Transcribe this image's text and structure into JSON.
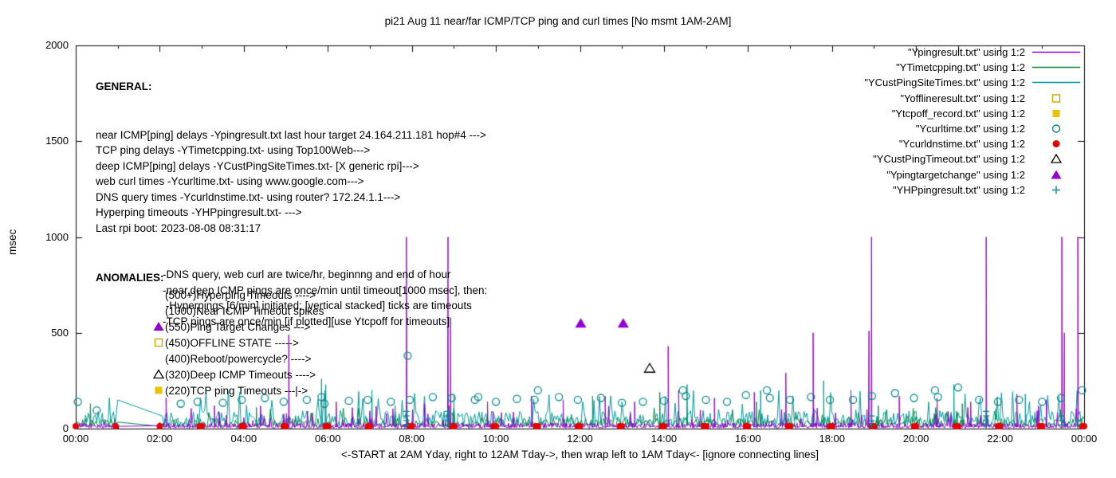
{
  "chart_data": {
    "type": "line",
    "title": "pi21 Aug 11  near/far ICMP/TCP ping and curl times [No msmt 1AM-2AM]",
    "xlabel": "<-START at 2AM Yday, right to 12AM Tday->, then wrap left to 1AM Tday<- [ignore connecting lines]",
    "ylabel": "msec",
    "ylim": [
      0,
      2000
    ],
    "x_range_hours": [
      0,
      24
    ],
    "gap_hours": [
      1,
      2
    ],
    "y_ticks": [
      0,
      500,
      1000,
      1500,
      2000
    ],
    "x_ticks": [
      "00:00",
      "02:00",
      "04:00",
      "06:00",
      "08:00",
      "10:00",
      "12:00",
      "14:00",
      "16:00",
      "18:00",
      "20:00",
      "22:00",
      "00:00"
    ],
    "grid": false,
    "legend_position": "top-right",
    "legend": [
      {
        "label": "\"Ypingresult.txt\" using 1:2",
        "type": "line",
        "color": "#9400D3"
      },
      {
        "label": "\"YTimetcpping.txt\" using 1:2",
        "type": "line",
        "color": "#008B45"
      },
      {
        "label": "\"YCustPingSiteTimes.txt\" using 1:2",
        "type": "line",
        "color": "#009999"
      },
      {
        "label": "\"Yofflineresult.txt\" using 1:2",
        "type": "square-open",
        "color": "#C9A900"
      },
      {
        "label": "\"Ytcpoff_record.txt\" using 1:2",
        "type": "square-filled",
        "color": "#E8C500"
      },
      {
        "label": "\"Ycurltime.txt\" using 1:2",
        "type": "circle-open",
        "color": "#008B8B"
      },
      {
        "label": "\"Ycurldnstime.txt\" using 1:2",
        "type": "circle-filled",
        "color": "#E60000"
      },
      {
        "label": "\"YCustPingTimeout.txt\" using 1:2",
        "type": "triangle-open",
        "color": "#000000"
      },
      {
        "label": "\"Ypingtargetchange\" using 1:2",
        "type": "triangle-filled",
        "color": "#9400D3"
      },
      {
        "label": "\"YHPpingresult.txt\" using 1:2",
        "type": "plus",
        "color": "#008B8B"
      }
    ],
    "series": [
      {
        "name": "Ypingresult.txt",
        "kind": "line",
        "color": "#9400D3",
        "baseline": {
          "min": 3,
          "max": 30,
          "spike_prob": 0.05,
          "spike_max": 120,
          "step": 0.016666
        },
        "spikes": [
          {
            "x": 2.15,
            "y": 160
          },
          {
            "x": 3.3,
            "y": 120
          },
          {
            "x": 5.07,
            "y": 490
          },
          {
            "x": 6.2,
            "y": 140
          },
          {
            "x": 7.87,
            "y": 1000
          },
          {
            "x": 8.3,
            "y": 130
          },
          {
            "x": 8.86,
            "y": 1000
          },
          {
            "x": 8.92,
            "y": 580
          },
          {
            "x": 9.8,
            "y": 140
          },
          {
            "x": 10.85,
            "y": 170
          },
          {
            "x": 11.6,
            "y": 150
          },
          {
            "x": 12.6,
            "y": 170
          },
          {
            "x": 13.3,
            "y": 140
          },
          {
            "x": 14.1,
            "y": 430
          },
          {
            "x": 14.35,
            "y": 200
          },
          {
            "x": 15.2,
            "y": 160
          },
          {
            "x": 16.15,
            "y": 190
          },
          {
            "x": 16.9,
            "y": 290
          },
          {
            "x": 17.55,
            "y": 500
          },
          {
            "x": 18.45,
            "y": 200
          },
          {
            "x": 18.88,
            "y": 510
          },
          {
            "x": 18.94,
            "y": 1000
          },
          {
            "x": 19.6,
            "y": 170
          },
          {
            "x": 20.5,
            "y": 160
          },
          {
            "x": 21.3,
            "y": 140
          },
          {
            "x": 21.67,
            "y": 1000
          },
          {
            "x": 22.4,
            "y": 180
          },
          {
            "x": 23.1,
            "y": 150
          },
          {
            "x": 23.47,
            "y": 1000
          },
          {
            "x": 23.53,
            "y": 500
          },
          {
            "x": 23.85,
            "y": 1000
          }
        ]
      },
      {
        "name": "YTimetcpping.txt",
        "kind": "line",
        "color": "#008B45",
        "baseline": {
          "min": 8,
          "max": 55,
          "spike_prob": 0.04,
          "spike_max": 110,
          "step": 0.033333
        },
        "spikes": [
          {
            "x": 0.35,
            "y": 130
          },
          {
            "x": 4.3,
            "y": 110
          },
          {
            "x": 7.6,
            "y": 120
          },
          {
            "x": 13.9,
            "y": 190
          },
          {
            "x": 16.2,
            "y": 140
          },
          {
            "x": 19.1,
            "y": 120
          },
          {
            "x": 21.1,
            "y": 130
          }
        ]
      },
      {
        "name": "YCustPingSiteTimes.txt",
        "kind": "line",
        "color": "#009999",
        "baseline": {
          "min": 12,
          "max": 95,
          "spike_prob": 0.07,
          "spike_max": 200,
          "step": 0.033333
        },
        "spikes": [
          {
            "x": 5.85,
            "y": 260
          },
          {
            "x": 5.95,
            "y": 230
          },
          {
            "x": 7.05,
            "y": 200
          },
          {
            "x": 9.0,
            "y": 180
          },
          {
            "x": 12.3,
            "y": 170
          },
          {
            "x": 14.55,
            "y": 230
          },
          {
            "x": 16.3,
            "y": 200
          },
          {
            "x": 17.8,
            "y": 250
          },
          {
            "x": 20.9,
            "y": 230
          },
          {
            "x": 22.6,
            "y": 180
          }
        ]
      },
      {
        "name": "Yofflineresult.txt",
        "kind": "points",
        "marker": "square-open",
        "color": "#C9A900",
        "points": []
      },
      {
        "name": "Ytcpoff_record.txt",
        "kind": "points",
        "marker": "square-filled",
        "color": "#E8C500",
        "points": []
      },
      {
        "name": "Ycurltime.txt",
        "kind": "points",
        "marker": "circle-open",
        "color": "#008B8B",
        "points": [
          [
            0.05,
            140
          ],
          [
            0.5,
            95
          ],
          [
            2.5,
            130
          ],
          [
            2.9,
            140
          ],
          [
            3.5,
            135
          ],
          [
            3.95,
            150
          ],
          [
            4.5,
            160
          ],
          [
            4.95,
            140
          ],
          [
            5.5,
            150
          ],
          [
            5.85,
            165
          ],
          [
            5.92,
            130
          ],
          [
            6.5,
            145
          ],
          [
            6.95,
            150
          ],
          [
            7.5,
            140
          ],
          [
            7.9,
            380
          ],
          [
            7.95,
            150
          ],
          [
            8.5,
            165
          ],
          [
            8.95,
            160
          ],
          [
            9.5,
            150
          ],
          [
            9.58,
            165
          ],
          [
            10.0,
            140
          ],
          [
            10.5,
            155
          ],
          [
            10.92,
            150
          ],
          [
            11.0,
            200
          ],
          [
            11.5,
            165
          ],
          [
            11.95,
            150
          ],
          [
            12.5,
            160
          ],
          [
            13.0,
            135
          ],
          [
            13.5,
            140
          ],
          [
            14.0,
            145
          ],
          [
            14.45,
            200
          ],
          [
            14.52,
            170
          ],
          [
            15.0,
            150
          ],
          [
            15.5,
            140
          ],
          [
            15.95,
            175
          ],
          [
            16.45,
            200
          ],
          [
            16.52,
            160
          ],
          [
            17.0,
            150
          ],
          [
            17.5,
            165
          ],
          [
            17.95,
            150
          ],
          [
            18.5,
            150
          ],
          [
            18.95,
            170
          ],
          [
            19.5,
            185
          ],
          [
            19.95,
            160
          ],
          [
            20.45,
            200
          ],
          [
            20.52,
            165
          ],
          [
            21.0,
            215
          ],
          [
            21.5,
            150
          ],
          [
            21.95,
            140
          ],
          [
            22.45,
            150
          ],
          [
            23.0,
            140
          ],
          [
            23.45,
            160
          ],
          [
            23.95,
            200
          ]
        ]
      },
      {
        "name": "Ycurldnstime.txt",
        "kind": "points",
        "marker": "circle-filled",
        "color": "#E60000",
        "points": [],
        "periodic": {
          "start": 0,
          "end": 24,
          "interval": 1,
          "offsets": [
            0,
            0.95
          ],
          "y": 12,
          "skip": [
            1,
            2
          ]
        }
      },
      {
        "name": "YCustPingTimeout.txt",
        "kind": "points",
        "marker": "triangle-open",
        "color": "#000000",
        "points": [
          [
            13.66,
            315
          ]
        ]
      },
      {
        "name": "Ypingtargetchange",
        "kind": "points",
        "marker": "triangle-filled",
        "color": "#9400D3",
        "points": [
          [
            12.02,
            548
          ],
          [
            13.03,
            548
          ]
        ]
      },
      {
        "name": "YHPpingresult.txt",
        "kind": "points",
        "marker": "plus",
        "color": "#008B8B",
        "points": [],
        "stacks": [
          {
            "x": 7.87,
            "ys": [
              18,
              42,
              66,
              90
            ]
          },
          {
            "x": 8.86,
            "ys": [
              18,
              42,
              66,
              90
            ]
          },
          {
            "x": 18.94,
            "ys": [
              18,
              42,
              66
            ]
          },
          {
            "x": 21.67,
            "ys": [
              18,
              42,
              66,
              90
            ]
          },
          {
            "x": 23.47,
            "ys": [
              18,
              42,
              66
            ]
          },
          {
            "x": 23.85,
            "ys": [
              18,
              42
            ]
          }
        ]
      }
    ]
  },
  "general": {
    "heading": "GENERAL:",
    "lines": [
      "near ICMP[ping] delays -Ypingresult.txt last hour target 24.164.211.181 hop#4 --->",
      "TCP ping delays -YTimetcpping.txt- using Top100Web--->",
      "deep ICMP[ping] delays -YCustPingSiteTimes.txt- [X generic rpi]--->",
      "web curl times -Ycurltime.txt- using www.google.com--->",
      "DNS query times -Ycurldnstime.txt- using router? 172.24.1.1--->",
      "Hyperping timeouts -YHPpingresult.txt- --->",
      "Last rpi boot: 2023-08-08 08:31:17"
    ],
    "notes": [
      "-DNS query, web curl are twice/hr, beginnng and end of hour",
      "-near,deep ICMP pings are once/min until timeout[1000 msec], then:",
      " -Hyperpings [6/min] initiated; [vertical stacked] ticks are timeouts",
      "-TCP pings are once/min [if plotted][use Ytcpoff for timeouts]"
    ]
  },
  "anomalies": {
    "heading": "ANOMALIES:",
    "items": [
      {
        "marker": "none",
        "color": "",
        "text": "(500+)Hyperping Timeouts ---->"
      },
      {
        "marker": "none",
        "color": "",
        "text": "(1000)Near ICMP Timeout spikes"
      },
      {
        "marker": "triangle-filled",
        "color": "#9400D3",
        "text": "(550)Ping Target Changes --->"
      },
      {
        "marker": "square-open",
        "color": "#C9A900",
        "text": "(450)OFFLINE STATE ----->"
      },
      {
        "marker": "none",
        "color": "",
        "text": "(400)Reboot/powercycle? ---->"
      },
      {
        "marker": "triangle-open",
        "color": "#000000",
        "text": "(320)Deep ICMP Timeouts ---->"
      },
      {
        "marker": "square-filled",
        "color": "#E8C500",
        "text": "(220)TCP ping Timeouts ---|->"
      }
    ]
  }
}
